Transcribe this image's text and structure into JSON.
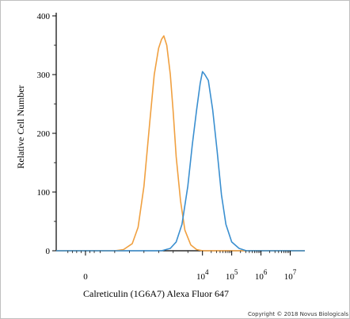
{
  "chart_data": {
    "type": "line",
    "xlabel": "Calreticulin (1G6A7) Alexa Fluor 647",
    "ylabel": "Relative Cell Number",
    "ylim": [
      0,
      400
    ],
    "yticks": [
      0,
      100,
      200,
      300,
      400
    ],
    "xticks": [
      {
        "pos": 0,
        "base": "0",
        "exp": ""
      },
      {
        "pos": 4,
        "base": "10",
        "exp": "4"
      },
      {
        "pos": 5,
        "base": "10",
        "exp": "5"
      },
      {
        "pos": 6,
        "base": "10",
        "exp": "6"
      },
      {
        "pos": 7,
        "base": "10",
        "exp": "7"
      }
    ],
    "series": [
      {
        "color": "#f0a040",
        "points": [
          [
            -1.0,
            0
          ],
          [
            1.0,
            0
          ],
          [
            1.3,
            2
          ],
          [
            1.6,
            12
          ],
          [
            1.8,
            40
          ],
          [
            2.0,
            110
          ],
          [
            2.2,
            220
          ],
          [
            2.35,
            300
          ],
          [
            2.5,
            345
          ],
          [
            2.6,
            360
          ],
          [
            2.68,
            366
          ],
          [
            2.78,
            350
          ],
          [
            2.9,
            300
          ],
          [
            3.0,
            235
          ],
          [
            3.1,
            160
          ],
          [
            3.25,
            85
          ],
          [
            3.4,
            35
          ],
          [
            3.6,
            10
          ],
          [
            3.8,
            2
          ],
          [
            4.0,
            0
          ],
          [
            7.5,
            0
          ]
        ]
      },
      {
        "color": "#3a8fd0",
        "points": [
          [
            -1.0,
            0
          ],
          [
            2.6,
            0
          ],
          [
            2.9,
            4
          ],
          [
            3.1,
            15
          ],
          [
            3.3,
            45
          ],
          [
            3.5,
            110
          ],
          [
            3.65,
            180
          ],
          [
            3.8,
            240
          ],
          [
            3.92,
            285
          ],
          [
            4.0,
            305
          ],
          [
            4.08,
            300
          ],
          [
            4.2,
            290
          ],
          [
            4.35,
            240
          ],
          [
            4.5,
            170
          ],
          [
            4.65,
            95
          ],
          [
            4.8,
            45
          ],
          [
            5.0,
            15
          ],
          [
            5.25,
            4
          ],
          [
            5.5,
            0
          ],
          [
            7.5,
            0
          ]
        ]
      }
    ]
  },
  "footer": {
    "copyright": "Copyright © 2018 Novus Biologicals"
  }
}
